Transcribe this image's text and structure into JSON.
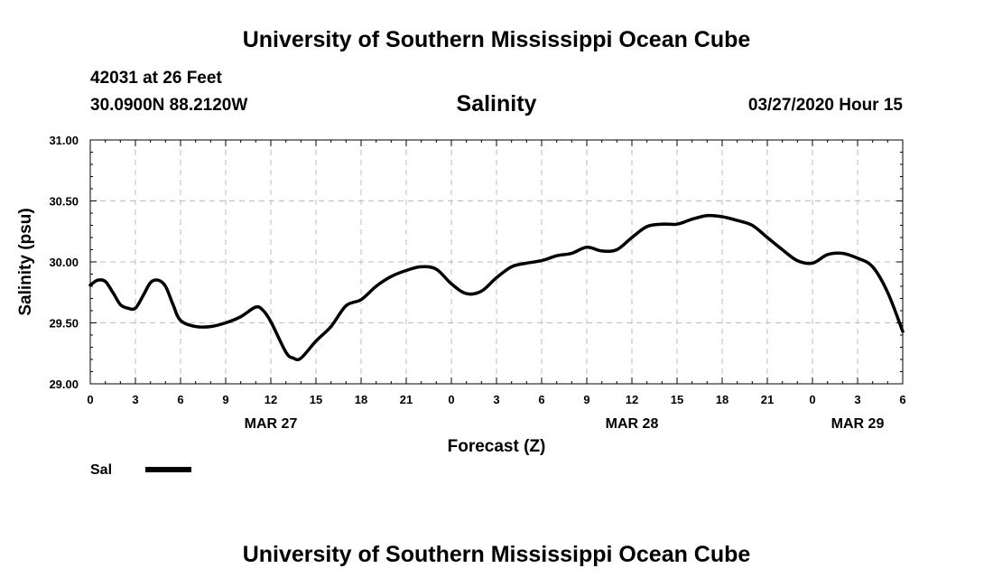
{
  "header": {
    "title": "University of Southern Mississippi Ocean Cube",
    "station": "42031 at 26 Feet",
    "coords": "30.0900N 88.2120W",
    "chart_title": "Salinity",
    "datetime": "03/27/2020 Hour 15"
  },
  "footer": {
    "title": "University of Southern Mississippi Ocean Cube"
  },
  "chart_data": {
    "type": "line",
    "title": "Salinity",
    "xlabel": "Forecast (Z)",
    "ylabel": "Salinity (psu)",
    "xlim": [
      0,
      54
    ],
    "ylim": [
      29.0,
      31.0
    ],
    "y_ticks": [
      "29.00",
      "29.50",
      "30.00",
      "30.50",
      "31.00"
    ],
    "y_tick_values": [
      29.0,
      29.5,
      30.0,
      30.5,
      31.0
    ],
    "x_tick_labels": [
      "0",
      "3",
      "6",
      "9",
      "12",
      "15",
      "18",
      "21",
      "0",
      "3",
      "6",
      "9",
      "12",
      "15",
      "18",
      "21",
      "0",
      "3",
      "6"
    ],
    "date_labels": [
      {
        "text": "MAR 27",
        "hour": 12
      },
      {
        "text": "MAR 28",
        "hour": 36
      },
      {
        "text": "MAR 29",
        "hour": 51
      }
    ],
    "grid": true,
    "legend": "bottom-left",
    "line_color": "#000000",
    "series": [
      {
        "name": "Sal",
        "x": [
          0,
          0.5,
          1,
          1.5,
          2,
          2.5,
          3,
          3.5,
          4,
          4.5,
          5,
          5.5,
          6,
          7,
          8,
          9,
          10,
          11,
          11.5,
          12,
          13,
          13.5,
          14,
          15,
          16,
          17,
          18,
          19,
          20,
          21,
          22,
          23,
          24,
          25,
          26,
          27,
          28,
          29,
          30,
          31,
          32,
          33,
          34,
          35,
          36,
          37,
          38,
          39,
          40,
          41,
          42,
          43,
          44,
          45,
          46,
          47,
          48,
          49,
          50,
          51,
          52,
          53,
          54
        ],
        "values": [
          29.81,
          29.85,
          29.84,
          29.75,
          29.65,
          29.62,
          29.62,
          29.72,
          29.83,
          29.85,
          29.8,
          29.65,
          29.52,
          29.47,
          29.47,
          29.5,
          29.55,
          29.63,
          29.6,
          29.51,
          29.26,
          29.21,
          29.21,
          29.35,
          29.47,
          29.64,
          29.69,
          29.8,
          29.88,
          29.93,
          29.96,
          29.94,
          29.82,
          29.74,
          29.76,
          29.87,
          29.96,
          29.99,
          30.01,
          30.05,
          30.07,
          30.12,
          30.09,
          30.1,
          30.2,
          30.29,
          30.31,
          30.31,
          30.35,
          30.38,
          30.37,
          30.34,
          30.3,
          30.2,
          30.1,
          30.01,
          29.99,
          30.06,
          30.07,
          30.03,
          29.96,
          29.75,
          29.43
        ]
      }
    ]
  }
}
